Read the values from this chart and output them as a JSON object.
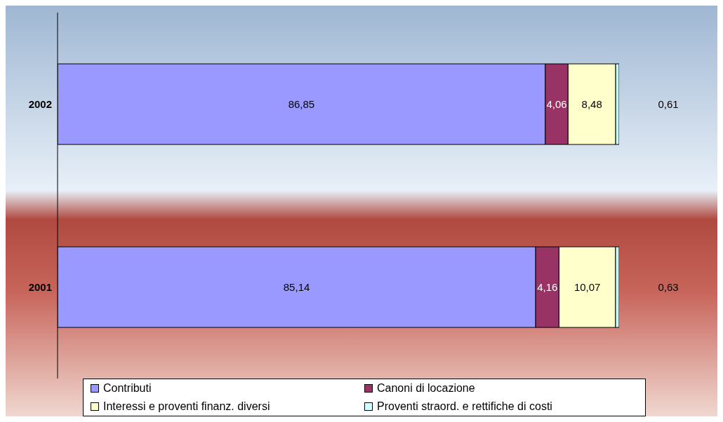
{
  "chart_data": {
    "type": "bar",
    "orientation": "horizontal",
    "stacked": true,
    "categories": [
      "2002",
      "2001"
    ],
    "legend": "bottom",
    "series": [
      {
        "name": "Contributi",
        "color": "#9999ff",
        "values": [
          86.85,
          85.14
        ],
        "value_labels": [
          "86,85",
          "85,14"
        ]
      },
      {
        "name": "Canoni di locazione",
        "color": "#993366",
        "values": [
          4.06,
          4.16
        ],
        "value_labels": [
          "4,06",
          "4,16"
        ]
      },
      {
        "name": "Interessi e proventi finanz. diversi",
        "color": "#ffffcc",
        "values": [
          8.48,
          10.07
        ],
        "value_labels": [
          "8,48",
          "10,07"
        ]
      },
      {
        "name": "Proventi straord. e rettifiche di costi",
        "color": "#ccffff",
        "values": [
          0.61,
          0.63
        ],
        "value_labels": [
          "0,61",
          "0,63"
        ]
      }
    ]
  }
}
